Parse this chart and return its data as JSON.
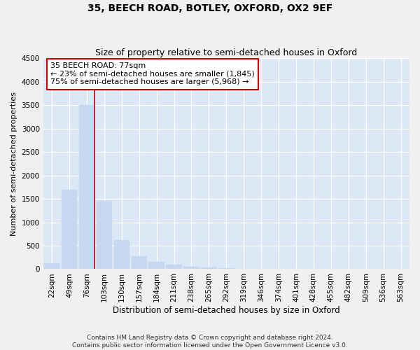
{
  "title": "35, BEECH ROAD, BOTLEY, OXFORD, OX2 9EF",
  "subtitle": "Size of property relative to semi-detached houses in Oxford",
  "xlabel": "Distribution of semi-detached houses by size in Oxford",
  "ylabel": "Number of semi-detached properties",
  "footer_line1": "Contains HM Land Registry data © Crown copyright and database right 2024.",
  "footer_line2": "Contains public sector information licensed under the Open Government Licence v3.0.",
  "bar_labels": [
    "22sqm",
    "49sqm",
    "76sqm",
    "103sqm",
    "130sqm",
    "157sqm",
    "184sqm",
    "211sqm",
    "238sqm",
    "265sqm",
    "292sqm",
    "319sqm",
    "346sqm",
    "374sqm",
    "401sqm",
    "428sqm",
    "455sqm",
    "482sqm",
    "509sqm",
    "536sqm",
    "563sqm"
  ],
  "bar_values": [
    130,
    1700,
    3500,
    1450,
    620,
    270,
    160,
    90,
    55,
    30,
    20,
    10,
    5,
    3,
    2,
    2,
    1,
    1,
    1,
    1,
    1
  ],
  "bar_color": "#c5d8f0",
  "bar_edgecolor": "#c5d8f0",
  "figure_bg": "#f0f0f0",
  "axes_bg": "#dce8f5",
  "grid_color": "#ffffff",
  "annotation_line1": "35 BEECH ROAD: 77sqm",
  "annotation_line2": "← 23% of semi-detached houses are smaller (1,845)",
  "annotation_line3": "75% of semi-detached houses are larger (5,968) →",
  "annotation_box_color": "#ffffff",
  "annotation_box_edgecolor": "#cc0000",
  "vline_color": "#cc0000",
  "vline_bar_index": 2,
  "ylim": [
    0,
    4500
  ],
  "yticks": [
    0,
    500,
    1000,
    1500,
    2000,
    2500,
    3000,
    3500,
    4000,
    4500
  ],
  "title_fontsize": 10,
  "subtitle_fontsize": 9,
  "xlabel_fontsize": 8.5,
  "ylabel_fontsize": 8,
  "tick_fontsize": 7.5,
  "annotation_fontsize": 8,
  "footer_fontsize": 6.5
}
